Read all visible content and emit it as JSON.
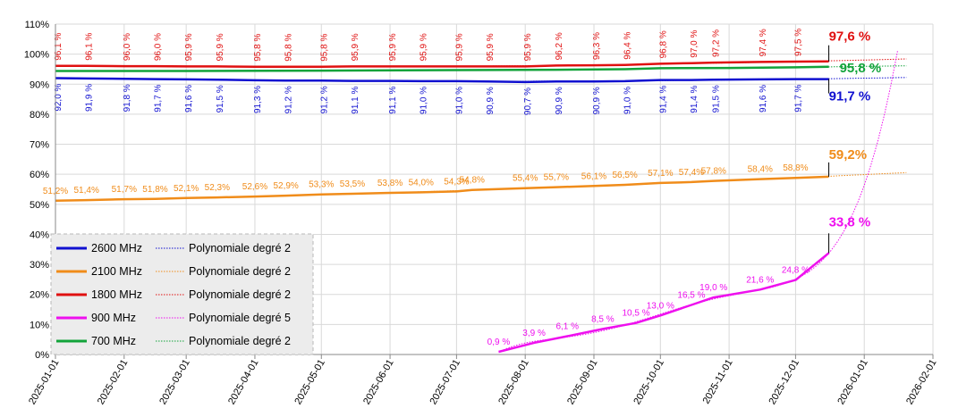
{
  "chart_data": {
    "type": "line",
    "y_ticks": [
      "0%",
      "10%",
      "20%",
      "30%",
      "40%",
      "50%",
      "60%",
      "70%",
      "80%",
      "90%",
      "100%",
      "110%"
    ],
    "ylim": [
      0,
      110
    ],
    "x_ticks": [
      "2025-01-01",
      "2025-02-01",
      "2025-03-01",
      "2025-04-01",
      "2025-05-01",
      "2025-06-01",
      "2025-07-01",
      "2025-08-01",
      "2025-09-01",
      "2025-10-01",
      "2025-11-01",
      "2025-12-01",
      "2026-01-01",
      "2026-02-01"
    ],
    "xlim": [
      "2025-01-01",
      "2026-02-01"
    ],
    "grid": true,
    "legend_position": "bottom-left",
    "series": [
      {
        "name": "2600 MHz",
        "color": "#1010d0",
        "trend_name": "Polynomiale degré 2",
        "points": [
          [
            "2025-01-01",
            92.0
          ],
          [
            "2025-01-15",
            91.9
          ],
          [
            "2025-02-01",
            91.8
          ],
          [
            "2025-02-15",
            91.7
          ],
          [
            "2025-03-01",
            91.6
          ],
          [
            "2025-03-15",
            91.5
          ],
          [
            "2025-04-01",
            91.3
          ],
          [
            "2025-04-15",
            91.2
          ],
          [
            "2025-05-01",
            91.2
          ],
          [
            "2025-05-15",
            91.1
          ],
          [
            "2025-06-01",
            91.1
          ],
          [
            "2025-06-15",
            91.0
          ],
          [
            "2025-07-01",
            91.0
          ],
          [
            "2025-07-15",
            90.9
          ],
          [
            "2025-08-01",
            90.7
          ],
          [
            "2025-08-15",
            90.9
          ],
          [
            "2025-09-01",
            90.9
          ],
          [
            "2025-09-15",
            91.0
          ],
          [
            "2025-10-01",
            91.4
          ],
          [
            "2025-10-15",
            91.4
          ],
          [
            "2025-10-25",
            91.5
          ],
          [
            "2025-11-15",
            91.6
          ],
          [
            "2025-12-01",
            91.7
          ],
          [
            "2025-12-16",
            91.7
          ]
        ],
        "labels": [
          "92,0 %",
          "91,9 %",
          "91,8 %",
          "91,7 %",
          "91,6 %",
          "91,5 %",
          "91,3 %",
          "91,2 %",
          "91,2 %",
          "91,1 %",
          "91,1 %",
          "91,0 %",
          "91,0 %",
          "90,9 %",
          "90,7 %",
          "90,9 %",
          "90,9 %",
          "91,0 %",
          "91,4 %",
          "91,4 %",
          "91,5 %",
          "91,6 %",
          "91,7 %"
        ],
        "end_label": "91,7 %"
      },
      {
        "name": "2100 MHz",
        "color": "#f08c1a",
        "trend_name": "Polynomiale degré 2",
        "points": [
          [
            "2025-01-01",
            51.2
          ],
          [
            "2025-01-15",
            51.4
          ],
          [
            "2025-02-01",
            51.7
          ],
          [
            "2025-02-15",
            51.8
          ],
          [
            "2025-03-01",
            52.1
          ],
          [
            "2025-03-15",
            52.3
          ],
          [
            "2025-04-01",
            52.6
          ],
          [
            "2025-04-15",
            52.9
          ],
          [
            "2025-05-01",
            53.3
          ],
          [
            "2025-05-15",
            53.5
          ],
          [
            "2025-06-01",
            53.8
          ],
          [
            "2025-06-15",
            54.0
          ],
          [
            "2025-07-01",
            54.3
          ],
          [
            "2025-07-08",
            54.8
          ],
          [
            "2025-08-01",
            55.4
          ],
          [
            "2025-08-15",
            55.7
          ],
          [
            "2025-09-01",
            56.1
          ],
          [
            "2025-09-15",
            56.5
          ],
          [
            "2025-10-01",
            57.1
          ],
          [
            "2025-10-15",
            57.4
          ],
          [
            "2025-10-25",
            57.8
          ],
          [
            "2025-11-15",
            58.4
          ],
          [
            "2025-12-01",
            58.8
          ],
          [
            "2025-12-16",
            59.2
          ]
        ],
        "labels": [
          "51,2%",
          "51,4%",
          "51,7%",
          "51,8%",
          "52,1%",
          "52,3%",
          "52,6%",
          "52,9%",
          "53,3%",
          "53,5%",
          "53,8%",
          "54,0%",
          "54,3%",
          "54,8%",
          "55,4%",
          "55,7%",
          "56,1%",
          "56,5%",
          "57,1%",
          "57,4%",
          "57,8%",
          "58,4%",
          "58,8%"
        ],
        "end_label": "59,2%"
      },
      {
        "name": "1800 MHz",
        "color": "#e01010",
        "trend_name": "Polynomiale degré 2",
        "points": [
          [
            "2025-01-01",
            96.1
          ],
          [
            "2025-01-15",
            96.1
          ],
          [
            "2025-02-01",
            96.0
          ],
          [
            "2025-02-15",
            96.0
          ],
          [
            "2025-03-01",
            95.9
          ],
          [
            "2025-03-15",
            95.9
          ],
          [
            "2025-04-01",
            95.8
          ],
          [
            "2025-04-15",
            95.8
          ],
          [
            "2025-05-01",
            95.8
          ],
          [
            "2025-05-15",
            95.9
          ],
          [
            "2025-06-01",
            95.9
          ],
          [
            "2025-06-15",
            95.9
          ],
          [
            "2025-07-01",
            95.9
          ],
          [
            "2025-07-15",
            95.9
          ],
          [
            "2025-08-01",
            95.9
          ],
          [
            "2025-08-15",
            96.2
          ],
          [
            "2025-09-01",
            96.3
          ],
          [
            "2025-09-15",
            96.4
          ],
          [
            "2025-10-01",
            96.8
          ],
          [
            "2025-10-15",
            97.0
          ],
          [
            "2025-10-25",
            97.2
          ],
          [
            "2025-11-15",
            97.4
          ],
          [
            "2025-12-01",
            97.5
          ],
          [
            "2025-12-16",
            97.6
          ]
        ],
        "labels": [
          "96,1 %",
          "96,1 %",
          "96,0 %",
          "96,0 %",
          "95,9 %",
          "95,9 %",
          "95,8 %",
          "95,8 %",
          "95,8 %",
          "95,9 %",
          "95,9 %",
          "95,9 %",
          "95,9 %",
          "95,9 %",
          "95,9 %",
          "96,2 %",
          "96,3 %",
          "96,4 %",
          "96,8 %",
          "97,0 %",
          "97,2 %",
          "97,4 %",
          "97,5 %"
        ],
        "end_label": "97,6 %"
      },
      {
        "name": "900 MHz",
        "color": "#ee10ee",
        "trend_name": "Polynomiale degré 5",
        "points": [
          [
            "2025-07-20",
            0.9
          ],
          [
            "2025-08-05",
            3.9
          ],
          [
            "2025-08-20",
            6.1
          ],
          [
            "2025-09-05",
            8.5
          ],
          [
            "2025-09-20",
            10.5
          ],
          [
            "2025-10-01",
            13.0
          ],
          [
            "2025-10-15",
            16.5
          ],
          [
            "2025-10-25",
            19.0
          ],
          [
            "2025-11-15",
            21.6
          ],
          [
            "2025-12-01",
            24.8
          ],
          [
            "2025-12-16",
            33.8
          ]
        ],
        "labels": [
          "0,9 %",
          "3,9 %",
          "6,1 %",
          "8,5 %",
          "10,5 %",
          "13,0 %",
          "16,5 %",
          "19,0 %",
          "21,6 %",
          "24,8 %"
        ],
        "end_label": "33,8 %"
      },
      {
        "name": "700 MHz",
        "color": "#12a33a",
        "trend_name": "Polynomiale degré 2",
        "points": [
          [
            "2025-01-01",
            94.4
          ],
          [
            "2025-03-01",
            94.4
          ],
          [
            "2025-05-01",
            94.5
          ],
          [
            "2025-07-01",
            94.7
          ],
          [
            "2025-08-15",
            94.8
          ],
          [
            "2025-09-15",
            95.0
          ],
          [
            "2025-10-01",
            95.3
          ],
          [
            "2025-11-01",
            95.4
          ],
          [
            "2025-12-01",
            95.6
          ],
          [
            "2025-12-16",
            95.8
          ]
        ],
        "labels": [],
        "end_label": "95,8 %"
      }
    ]
  }
}
